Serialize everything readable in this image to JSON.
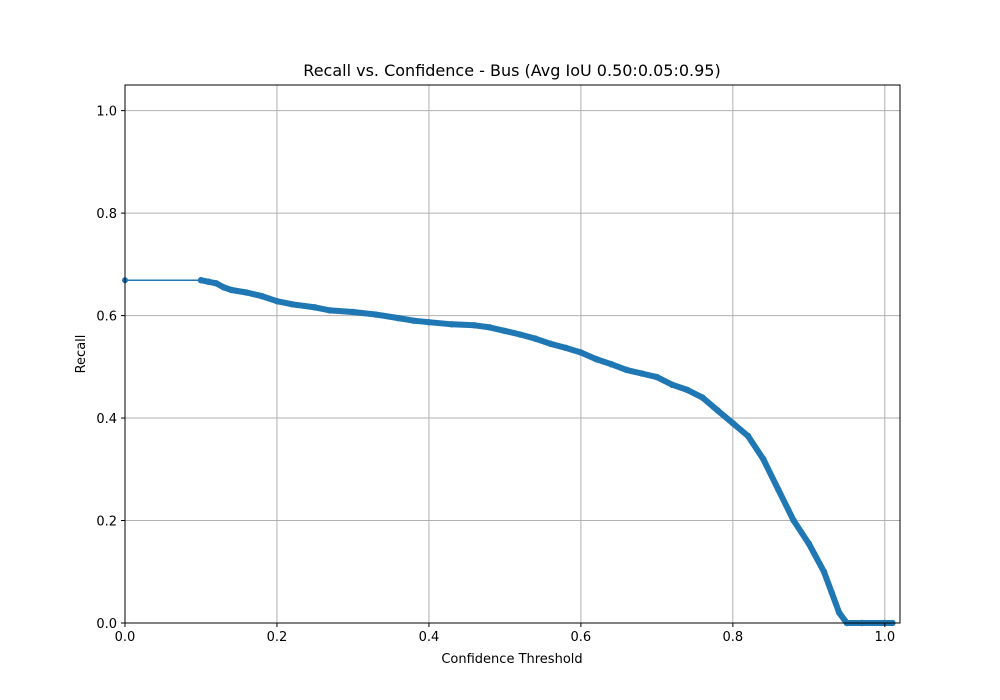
{
  "chart_data": {
    "type": "line",
    "title": "Recall vs. Confidence - Bus (Avg IoU 0.50:0.05:0.95)",
    "xlabel": "Confidence Threshold",
    "ylabel": "Recall",
    "xlim": [
      0.0,
      1.02
    ],
    "ylim": [
      0.0,
      1.05
    ],
    "x_ticks": [
      0.0,
      0.2,
      0.4,
      0.6,
      0.8,
      1.0
    ],
    "y_ticks": [
      0.0,
      0.2,
      0.4,
      0.6,
      0.8,
      1.0
    ],
    "x_tick_labels": [
      "0.0",
      "0.2",
      "0.4",
      "0.6",
      "0.8",
      "1.0"
    ],
    "y_tick_labels": [
      "0.0",
      "0.2",
      "0.4",
      "0.6",
      "0.8",
      "1.0"
    ],
    "grid": true,
    "legend": "none",
    "series": [
      {
        "color": "#1f77b4",
        "points": [
          [
            0.0,
            0.669
          ],
          [
            0.1,
            0.669
          ],
          [
            0.11,
            0.666
          ],
          [
            0.12,
            0.663
          ],
          [
            0.13,
            0.655
          ],
          [
            0.14,
            0.65
          ],
          [
            0.16,
            0.645
          ],
          [
            0.18,
            0.638
          ],
          [
            0.2,
            0.628
          ],
          [
            0.22,
            0.622
          ],
          [
            0.25,
            0.616
          ],
          [
            0.27,
            0.61
          ],
          [
            0.3,
            0.607
          ],
          [
            0.33,
            0.602
          ],
          [
            0.36,
            0.595
          ],
          [
            0.38,
            0.59
          ],
          [
            0.4,
            0.587
          ],
          [
            0.43,
            0.583
          ],
          [
            0.46,
            0.581
          ],
          [
            0.48,
            0.577
          ],
          [
            0.5,
            0.57
          ],
          [
            0.52,
            0.563
          ],
          [
            0.54,
            0.555
          ],
          [
            0.56,
            0.545
          ],
          [
            0.58,
            0.537
          ],
          [
            0.6,
            0.528
          ],
          [
            0.62,
            0.515
          ],
          [
            0.64,
            0.505
          ],
          [
            0.66,
            0.494
          ],
          [
            0.68,
            0.487
          ],
          [
            0.7,
            0.48
          ],
          [
            0.72,
            0.465
          ],
          [
            0.74,
            0.455
          ],
          [
            0.76,
            0.44
          ],
          [
            0.78,
            0.415
          ],
          [
            0.8,
            0.39
          ],
          [
            0.82,
            0.365
          ],
          [
            0.84,
            0.32
          ],
          [
            0.86,
            0.26
          ],
          [
            0.88,
            0.2
          ],
          [
            0.9,
            0.155
          ],
          [
            0.92,
            0.1
          ],
          [
            0.93,
            0.06
          ],
          [
            0.94,
            0.02
          ],
          [
            0.95,
            0.0
          ],
          [
            0.97,
            0.0
          ],
          [
            1.0,
            0.0
          ],
          [
            1.01,
            0.0
          ]
        ]
      }
    ]
  }
}
